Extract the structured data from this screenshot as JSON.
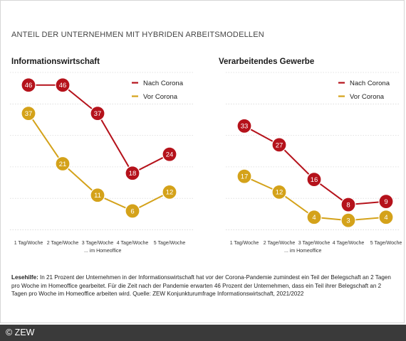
{
  "super_title": "ANTEIL DER UNTERNEHMEN MIT HYBRIDEN ARBEITSMODELLEN",
  "footer": {
    "lead": "Lesehilfe:",
    "text": "In 21 Prozent der Unternehmen in der Informationswirtschaft hat vor der Corona-Pandemie zumindest ein Teil der Belegschaft an 2 Tagen pro Woche im Homeoffice gearbeitet. Für die Zeit nach der Pandemie erwarten 46 Prozent der Unternehmen, dass ein Teil ihrer Belegschaft an 2 Tagen pro Woche im Homeoffice arbeiten wird. Quelle: ZEW Konjunkturumfrage Informationswirtschaft, 2021/2022"
  },
  "credit": "© ZEW",
  "colors": {
    "nach": "#b5121b",
    "vor": "#d4a21a",
    "grid": "#d9d9d9"
  },
  "chart_data": [
    {
      "type": "line",
      "title": "Informationswirtschaft",
      "categories": [
        "1 Tag/Woche",
        "2 Tage/Woche",
        "3 Tage/Woche",
        "4 Tage/Woche",
        "5 Tage/Woche"
      ],
      "xnote": "... im Homeoffice",
      "ylim": [
        0,
        50
      ],
      "grid": true,
      "legend": "top-right",
      "series": [
        {
          "name": "Nach Corona",
          "key": "nach",
          "values": [
            46,
            46,
            37,
            18,
            24
          ]
        },
        {
          "name": "Vor Corona",
          "key": "vor",
          "values": [
            37,
            21,
            11,
            6,
            12
          ]
        }
      ]
    },
    {
      "type": "line",
      "title": "Verarbeitendes Gewerbe",
      "categories": [
        "1 Tag/Woche",
        "2 Tage/Woche",
        "3 Tage/Woche",
        "4 Tage/Woche",
        "5 Tage/Woche"
      ],
      "xnote": "... im Homeoffice",
      "ylim": [
        0,
        50
      ],
      "grid": true,
      "legend": "top-right",
      "series": [
        {
          "name": "Nach Corona",
          "key": "nach",
          "values": [
            33,
            27,
            16,
            8,
            9
          ]
        },
        {
          "name": "Vor Corona",
          "key": "vor",
          "values": [
            17,
            12,
            4,
            3,
            4
          ]
        }
      ]
    }
  ]
}
